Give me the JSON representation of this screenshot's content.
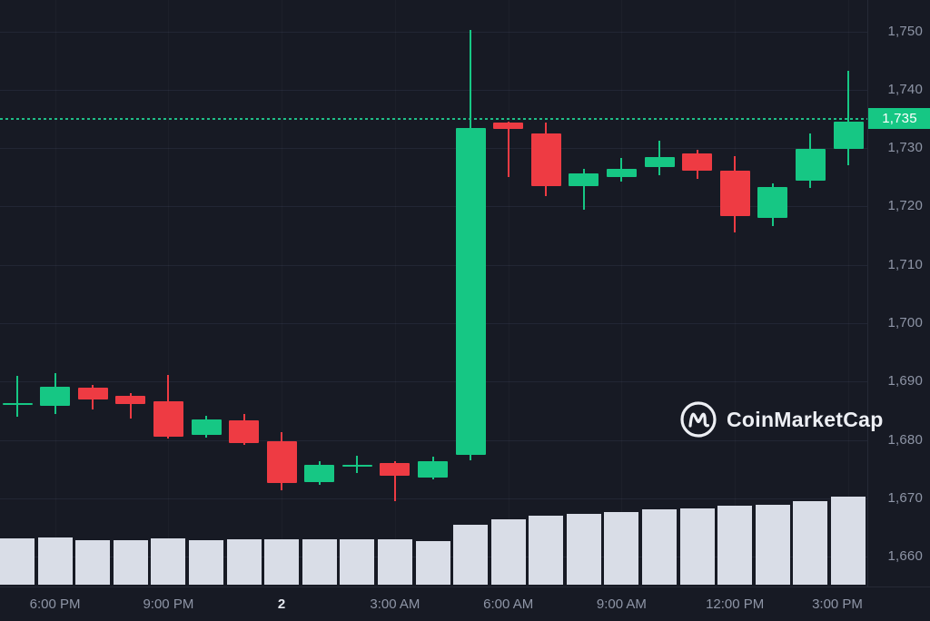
{
  "watermark": {
    "brand": "CoinMarketCap"
  },
  "colors": {
    "background": "#171a24",
    "up": "#16c784",
    "down": "#ee3b43",
    "volume_bar": "#d9dde7",
    "grid": "#222634",
    "axis_text": "#8e95a6",
    "axis_text_strong": "#e6e9f0",
    "last_price_line": "#1fbd86",
    "badge_background": "#16c784",
    "badge_text": "#ffffff"
  },
  "price_axis": {
    "ticks": [
      "1,750",
      "1,740",
      "1,730",
      "1,720",
      "1,710",
      "1,700",
      "1,690",
      "1,680",
      "1,670",
      "1,660"
    ],
    "tick_values": [
      1750,
      1740,
      1730,
      1720,
      1710,
      1700,
      1690,
      1680,
      1670,
      1660
    ],
    "last_price_label": "1,735",
    "last_price_value": 1735
  },
  "time_axis": {
    "labels": [
      {
        "text": "6:00 PM",
        "index": 1,
        "emphasis": false
      },
      {
        "text": "9:00 PM",
        "index": 4,
        "emphasis": false
      },
      {
        "text": "2",
        "index": 7,
        "emphasis": true
      },
      {
        "text": "3:00 AM",
        "index": 10,
        "emphasis": false
      },
      {
        "text": "6:00 AM",
        "index": 13,
        "emphasis": false
      },
      {
        "text": "9:00 AM",
        "index": 16,
        "emphasis": false
      },
      {
        "text": "12:00 PM",
        "index": 19,
        "emphasis": false
      },
      {
        "text": "3:00 PM",
        "index": 22,
        "emphasis": false
      }
    ]
  },
  "chart_data": {
    "type": "candlestick",
    "interval": "1h",
    "ylim": [
      1655,
      1755
    ],
    "grid": true,
    "last_price": 1735,
    "candles": [
      {
        "time": "5:00 PM",
        "open": 1686.0,
        "high": 1691.0,
        "low": 1684.0,
        "close": 1686.3
      },
      {
        "time": "6:00 PM",
        "open": 1685.9,
        "high": 1691.4,
        "low": 1684.4,
        "close": 1689.1
      },
      {
        "time": "7:00 PM",
        "open": 1688.9,
        "high": 1689.4,
        "low": 1685.2,
        "close": 1687.0
      },
      {
        "time": "8:00 PM",
        "open": 1687.5,
        "high": 1688.0,
        "low": 1683.6,
        "close": 1686.1
      },
      {
        "time": "9:00 PM",
        "open": 1686.7,
        "high": 1691.1,
        "low": 1680.2,
        "close": 1680.6
      },
      {
        "time": "10:00 PM",
        "open": 1680.9,
        "high": 1684.1,
        "low": 1680.4,
        "close": 1683.6
      },
      {
        "time": "11:00 PM",
        "open": 1683.4,
        "high": 1684.4,
        "low": 1679.1,
        "close": 1679.4
      },
      {
        "time": "12:00 AM",
        "open": 1679.8,
        "high": 1681.4,
        "low": 1671.3,
        "close": 1672.7
      },
      {
        "time": "1:00 AM",
        "open": 1672.7,
        "high": 1676.3,
        "low": 1672.3,
        "close": 1675.8
      },
      {
        "time": "2:00 AM",
        "open": 1675.4,
        "high": 1677.3,
        "low": 1674.4,
        "close": 1675.8
      },
      {
        "time": "3:00 AM",
        "open": 1676.1,
        "high": 1676.4,
        "low": 1669.5,
        "close": 1673.9
      },
      {
        "time": "4:00 AM",
        "open": 1673.6,
        "high": 1677.1,
        "low": 1673.3,
        "close": 1676.3
      },
      {
        "time": "5:00 AM",
        "open": 1677.5,
        "high": 1750.3,
        "low": 1676.5,
        "close": 1733.5
      },
      {
        "time": "6:00 AM",
        "open": 1734.4,
        "high": 1734.6,
        "low": 1725.0,
        "close": 1733.2
      },
      {
        "time": "7:00 AM",
        "open": 1732.5,
        "high": 1734.4,
        "low": 1721.8,
        "close": 1723.5
      },
      {
        "time": "8:00 AM",
        "open": 1723.5,
        "high": 1726.5,
        "low": 1719.5,
        "close": 1725.6
      },
      {
        "time": "9:00 AM",
        "open": 1725.0,
        "high": 1728.3,
        "low": 1724.2,
        "close": 1726.5
      },
      {
        "time": "10:00 AM",
        "open": 1726.8,
        "high": 1731.2,
        "low": 1725.4,
        "close": 1728.5
      },
      {
        "time": "11:00 AM",
        "open": 1729.1,
        "high": 1729.7,
        "low": 1724.7,
        "close": 1726.1
      },
      {
        "time": "12:00 PM",
        "open": 1726.2,
        "high": 1728.6,
        "low": 1715.6,
        "close": 1718.4
      },
      {
        "time": "1:00 PM",
        "open": 1718.1,
        "high": 1724.0,
        "low": 1716.7,
        "close": 1723.4
      },
      {
        "time": "2:00 PM",
        "open": 1724.4,
        "high": 1732.5,
        "low": 1723.1,
        "close": 1729.9
      },
      {
        "time": "3:00 PM",
        "open": 1729.9,
        "high": 1743.3,
        "low": 1727.1,
        "close": 1734.6
      }
    ],
    "volume_relative": [
      51,
      52,
      49,
      49,
      51,
      49,
      50,
      50,
      50,
      50,
      50,
      48,
      66,
      72,
      76,
      78,
      80,
      83,
      84,
      87,
      88,
      92,
      97
    ]
  }
}
